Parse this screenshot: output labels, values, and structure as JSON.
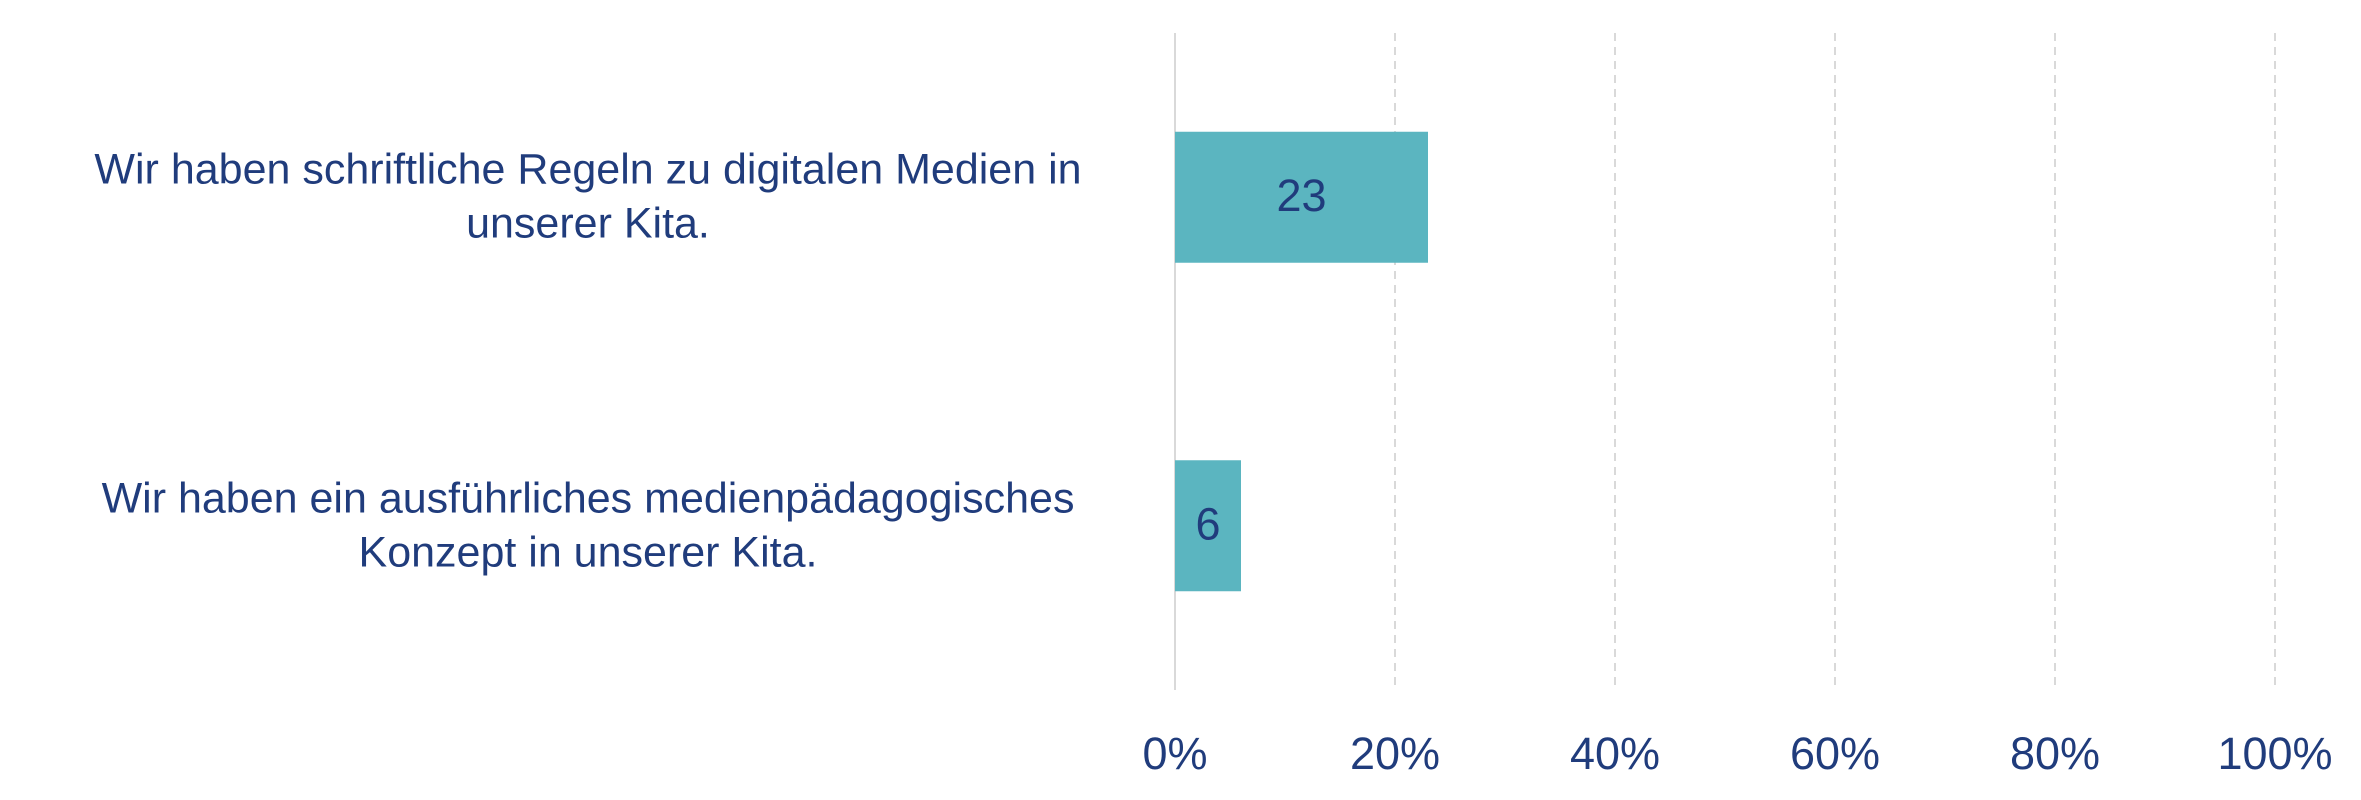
{
  "chart_data": {
    "type": "bar",
    "orientation": "horizontal",
    "categories": [
      "Wir haben schriftliche Regeln zu digitalen Medien in unserer Kita.",
      "Wir haben ein ausführliches medienpädagogisches Konzept in unserer Kita."
    ],
    "values": [
      23,
      6
    ],
    "color": "#5bb5c0",
    "xlim": [
      0,
      100
    ],
    "xticks": [
      {
        "value": 0,
        "label": "0%"
      },
      {
        "value": 20,
        "label": "20%"
      },
      {
        "value": 40,
        "label": "40%"
      },
      {
        "value": 60,
        "label": "60%"
      },
      {
        "value": 80,
        "label": "80%"
      },
      {
        "value": 100,
        "label": "100%"
      }
    ],
    "grid": true
  }
}
